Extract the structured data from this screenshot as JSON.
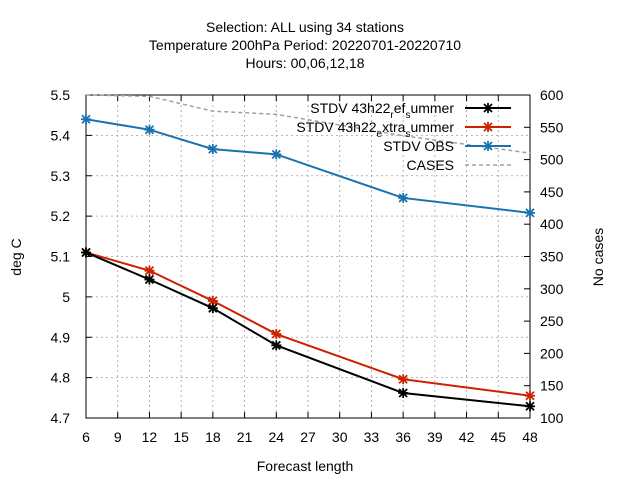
{
  "chart_data": {
    "type": "line",
    "title_lines": [
      "Selection: ALL using    34 stations",
      "Temperature 200hPa   Period: 20220701-20220710",
      "Hours:  00,06,12,18"
    ],
    "xlabel": "Forecast length",
    "ylabel": "deg C",
    "y2label": "No cases",
    "xlim": [
      6,
      48
    ],
    "ylim": [
      4.7,
      5.5
    ],
    "y2lim": [
      100,
      600
    ],
    "xticks": [
      6,
      9,
      12,
      15,
      18,
      21,
      24,
      27,
      30,
      33,
      36,
      39,
      42,
      45,
      48
    ],
    "yticks": [
      4.7,
      4.8,
      4.9,
      5,
      5.1,
      5.2,
      5.3,
      5.4,
      5.5
    ],
    "y2ticks": [
      100,
      150,
      200,
      250,
      300,
      350,
      400,
      450,
      500,
      550,
      600
    ],
    "grid": true,
    "legend_position": "top-right",
    "series": [
      {
        "name": "STDV 43h22_ref_summer",
        "legend_parts": [
          "STDV 43h22",
          "r",
          "ef",
          "s",
          "ummer"
        ],
        "axis": "y1",
        "color": "#000000",
        "style": "line-markers",
        "x": [
          6,
          12,
          18,
          24,
          36,
          48
        ],
        "values": [
          5.11,
          5.043,
          4.972,
          4.88,
          4.762,
          4.729
        ]
      },
      {
        "name": "STDV 43h22_extra_summer",
        "legend_parts": [
          "STDV 43h22",
          "e",
          "xtra",
          "s",
          "ummer"
        ],
        "axis": "y1",
        "color": "#cc2200",
        "style": "line-markers",
        "x": [
          6,
          12,
          18,
          24,
          36,
          48
        ],
        "values": [
          5.11,
          5.065,
          4.99,
          4.908,
          4.796,
          4.755
        ]
      },
      {
        "name": "STDV OBS",
        "axis": "y1",
        "color": "#1a73b0",
        "style": "line-markers",
        "x": [
          6,
          12,
          18,
          24,
          36,
          48
        ],
        "values": [
          5.44,
          5.414,
          5.366,
          5.353,
          5.245,
          5.208
        ]
      },
      {
        "name": "CASES",
        "axis": "y2",
        "color": "#a0a0a0",
        "style": "dashed",
        "x": [
          6,
          12,
          18,
          24,
          36,
          48
        ],
        "values": [
          600,
          598,
          575,
          570,
          537,
          510
        ]
      }
    ]
  }
}
